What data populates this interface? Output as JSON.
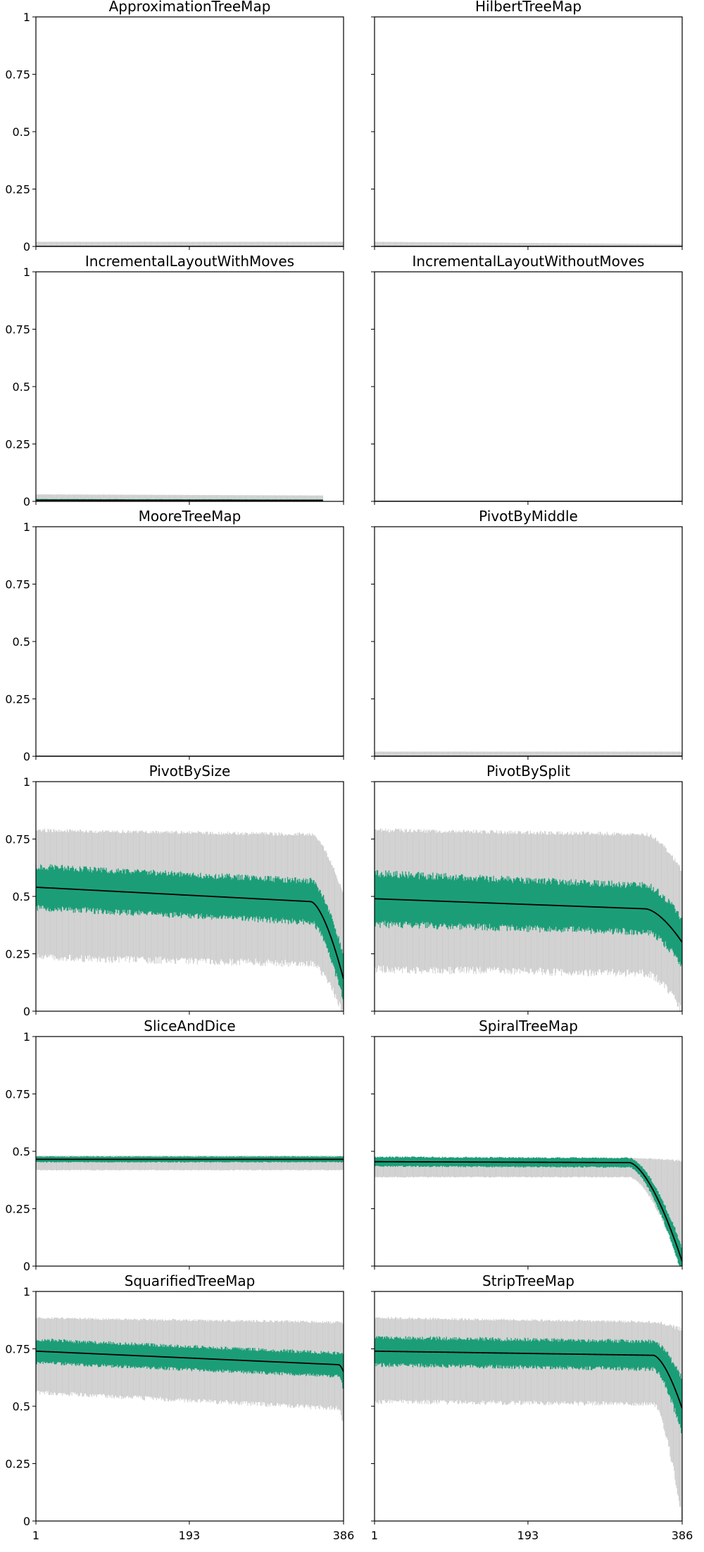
{
  "chart_data": {
    "type": "small-multiples-band",
    "layout": {
      "rows": 6,
      "columns": 2,
      "shared_x": true,
      "shared_y": true
    },
    "x_range": [
      1,
      386
    ],
    "y_range": [
      0,
      1
    ],
    "x_ticks": [
      "1",
      "193",
      "386"
    ],
    "y_ticks": [
      "0",
      "0.25",
      "0.5",
      "0.75",
      "1"
    ],
    "grid": false,
    "legend": "none",
    "colors": {
      "range": "#cccccc",
      "iqr": "#1b9e77",
      "median": "#000000",
      "axes": "#000000"
    },
    "panels": [
      {
        "title": "ApproximationTreeMap",
        "profile": {
          "median": [
            0,
            0
          ],
          "iqr_half": [
            0,
            0
          ],
          "range_low": [
            0,
            0
          ],
          "range_high": [
            0.02,
            0.02
          ],
          "drop_start": 386
        }
      },
      {
        "title": "HilbertTreeMap",
        "profile": {
          "median": [
            0,
            0
          ],
          "iqr_half": [
            0,
            0
          ],
          "range_low": [
            0,
            0
          ],
          "range_high": [
            0.02,
            0.01
          ],
          "drop_start": 386
        }
      },
      {
        "title": "IncrementalLayoutWithMoves",
        "profile": {
          "median": [
            0.005,
            0.004
          ],
          "iqr_half": [
            0.005,
            0.004
          ],
          "range_low": [
            0,
            0
          ],
          "range_high": [
            0.03,
            0.025
          ],
          "x_end": 360,
          "drop_start": 386
        }
      },
      {
        "title": "IncrementalLayoutWithoutMoves",
        "profile": {
          "median": [
            0,
            0
          ],
          "iqr_half": [
            0,
            0
          ],
          "range_low": [
            0,
            0
          ],
          "range_high": [
            0,
            0
          ],
          "drop_start": 386
        }
      },
      {
        "title": "MooreTreeMap",
        "profile": {
          "median": [
            0,
            0
          ],
          "iqr_half": [
            0,
            0
          ],
          "range_low": [
            0,
            0
          ],
          "range_high": [
            0.003,
            0.003
          ],
          "drop_start": 386
        }
      },
      {
        "title": "PivotByMiddle",
        "profile": {
          "median": [
            0,
            0
          ],
          "iqr_half": [
            0,
            0
          ],
          "range_low": [
            0,
            0
          ],
          "range_high": [
            0.02,
            0.02
          ],
          "drop_start": 386
        }
      },
      {
        "title": "PivotBySize",
        "profile": {
          "median": [
            0.54,
            0.47
          ],
          "iqr_half": [
            0.09,
            0.09
          ],
          "range_low": [
            0.25,
            0.22
          ],
          "range_high": [
            0.78,
            0.76
          ],
          "drop_start": 345,
          "median_end": 0.14,
          "iqr_end": 0.1,
          "low_end": 0.0,
          "high_end": 0.5
        }
      },
      {
        "title": "PivotBySplit",
        "profile": {
          "median": [
            0.49,
            0.44
          ],
          "iqr_half": [
            0.11,
            0.1
          ],
          "range_low": [
            0.2,
            0.18
          ],
          "range_high": [
            0.78,
            0.76
          ],
          "drop_start": 340,
          "median_end": 0.3,
          "iqr_end": 0.1,
          "low_end": 0.02,
          "high_end": 0.6
        }
      },
      {
        "title": "SliceAndDice",
        "profile": {
          "median": [
            0.465,
            0.465
          ],
          "iqr_half": [
            0.012,
            0.012
          ],
          "range_low": [
            0.42,
            0.42
          ],
          "range_high": [
            0.48,
            0.48
          ],
          "drop_start": 386
        }
      },
      {
        "title": "SpiralTreeMap",
        "profile": {
          "median": [
            0.455,
            0.45
          ],
          "iqr_half": [
            0.02,
            0.02
          ],
          "range_low": [
            0.39,
            0.39
          ],
          "range_high": [
            0.47,
            0.47
          ],
          "drop_start": 320,
          "median_end": 0.02,
          "iqr_end": 0.06,
          "low_end": 0.0,
          "high_end": 0.45
        }
      },
      {
        "title": "SquarifiedTreeMap",
        "profile": {
          "median": [
            0.74,
            0.68
          ],
          "iqr_half": [
            0.05,
            0.05
          ],
          "range_low": [
            0.57,
            0.5
          ],
          "range_high": [
            0.88,
            0.86
          ],
          "drop_start": 380,
          "median_end": 0.65,
          "iqr_end": 0.08,
          "low_end": 0.42,
          "high_end": 0.85
        }
      },
      {
        "title": "StripTreeMap",
        "profile": {
          "median": [
            0.74,
            0.72
          ],
          "iqr_half": [
            0.06,
            0.06
          ],
          "range_low": [
            0.53,
            0.52
          ],
          "range_high": [
            0.88,
            0.86
          ],
          "drop_start": 350,
          "median_end": 0.49,
          "iqr_end": 0.12,
          "low_end": 0.02,
          "high_end": 0.82
        }
      }
    ]
  }
}
